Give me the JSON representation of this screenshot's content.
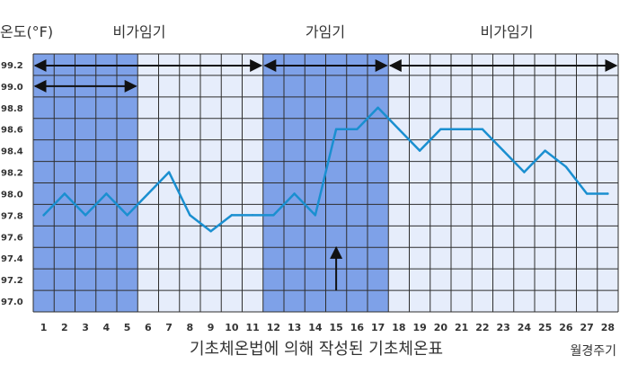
{
  "chart_data": {
    "type": "line",
    "title": "",
    "caption": "기초체온법에 의해 작성된 기초체온표",
    "ylabel": "온도(°F)",
    "xlabel": "월경주기",
    "x": [
      1,
      2,
      3,
      4,
      5,
      6,
      7,
      8,
      9,
      10,
      11,
      12,
      13,
      14,
      15,
      16,
      17,
      18,
      19,
      20,
      21,
      22,
      23,
      24,
      25,
      26,
      27,
      28
    ],
    "ylim": [
      96.9,
      99.3
    ],
    "yticks": [
      "97.0",
      "97.2",
      "97.4",
      "97.6",
      "97.8",
      "98.0",
      "98.2",
      "98.4",
      "98.6",
      "98.8",
      "99.0",
      "99.2"
    ],
    "grid": true,
    "series": [
      {
        "values": [
          97.8,
          98.0,
          97.8,
          98.0,
          97.8,
          98.0,
          98.2,
          97.8,
          97.65,
          97.8,
          97.8,
          97.8,
          98.0,
          97.8,
          98.6,
          98.6,
          98.8,
          98.6,
          98.4,
          98.6,
          98.6,
          98.6,
          98.4,
          98.2,
          98.4,
          98.25,
          98.0,
          98.0
        ]
      }
    ],
    "phases": [
      {
        "label": "비가임기",
        "days": [
          1,
          11
        ]
      },
      {
        "label": "가임기",
        "days": [
          12,
          17
        ]
      },
      {
        "label": "비가임기",
        "days": [
          18,
          28
        ]
      }
    ],
    "shaded_bands": [
      {
        "days": [
          1,
          5
        ],
        "tone": "dark"
      },
      {
        "days": [
          6,
          11
        ],
        "tone": "light"
      },
      {
        "days": [
          12,
          17
        ],
        "tone": "dark"
      },
      {
        "days": [
          18,
          28
        ],
        "tone": "light"
      }
    ],
    "annotations": [
      {
        "type": "double-arrow",
        "days": [
          1,
          11
        ],
        "at": 99.2
      },
      {
        "type": "double-arrow",
        "days": [
          12,
          17
        ],
        "at": 99.2
      },
      {
        "type": "double-arrow",
        "days": [
          18,
          28
        ],
        "at": 99.2
      },
      {
        "type": "double-arrow",
        "days": [
          1,
          5
        ],
        "at": 99.0
      },
      {
        "type": "up-arrow",
        "day": 15,
        "from": 97.1,
        "to": 97.5
      }
    ],
    "colors": {
      "dark_band": "#7ea1e8",
      "light_band": "#e6edfb",
      "grid": "#2e2e2e",
      "line": "#1a8fd0",
      "text": "#333333"
    }
  }
}
